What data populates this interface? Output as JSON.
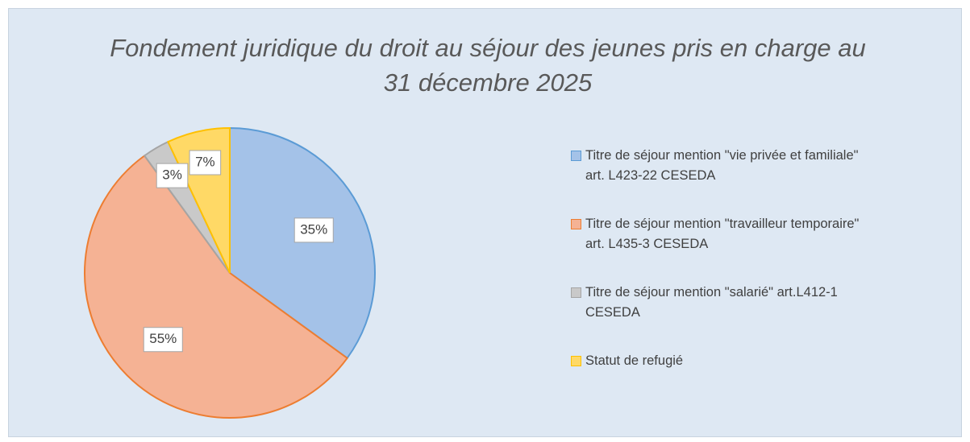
{
  "chart_data": {
    "type": "pie",
    "title": "Fondement juridique du droit au séjour des jeunes pris en charge au 31 décembre 2025",
    "categories": [
      "Titre de séjour mention \"vie privée et familiale\" art. L423-22 CESEDA",
      "Titre de séjour mention \"travailleur temporaire\" art. L435-3 CESEDA",
      "Titre de séjour mention \"salarié\" art.L412-1 CESEDA",
      "Statut de refugié"
    ],
    "values": [
      35,
      55,
      3,
      7
    ],
    "value_labels": [
      "35%",
      "55%",
      "3%",
      "7%"
    ],
    "colors": [
      "#a4c2e8",
      "#f5b294",
      "#c9c9c9",
      "#ffd966"
    ],
    "legend": "right"
  }
}
